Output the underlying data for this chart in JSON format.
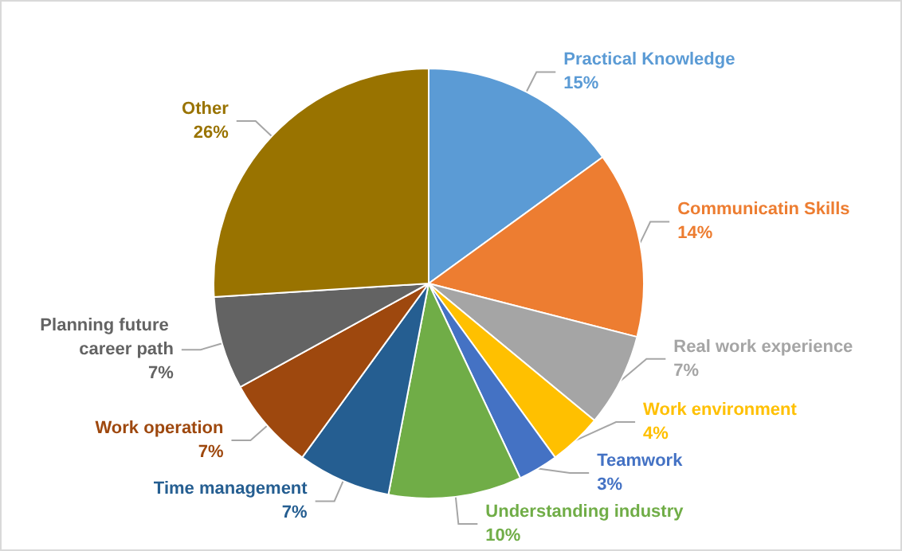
{
  "chart_data": {
    "type": "pie",
    "categories": [
      "Practical Knowledge",
      "Communicatin Skills",
      "Real work experience",
      "Work environment",
      "Teamwork",
      "Understanding industry",
      "Time management",
      "Work operation",
      "Planning future career path",
      "Other"
    ],
    "values": [
      15,
      14,
      7,
      4,
      3,
      10,
      7,
      7,
      7,
      26
    ],
    "value_labels": [
      "15%",
      "14%",
      "7%",
      "4%",
      "3%",
      "10%",
      "7%",
      "7%",
      "7%",
      "26%"
    ],
    "colors": [
      "#5b9bd5",
      "#ed7d31",
      "#a5a5a5",
      "#ffc000",
      "#4472c4",
      "#70ad47",
      "#255e91",
      "#9e480e",
      "#636363",
      "#997300"
    ],
    "legend": false
  }
}
